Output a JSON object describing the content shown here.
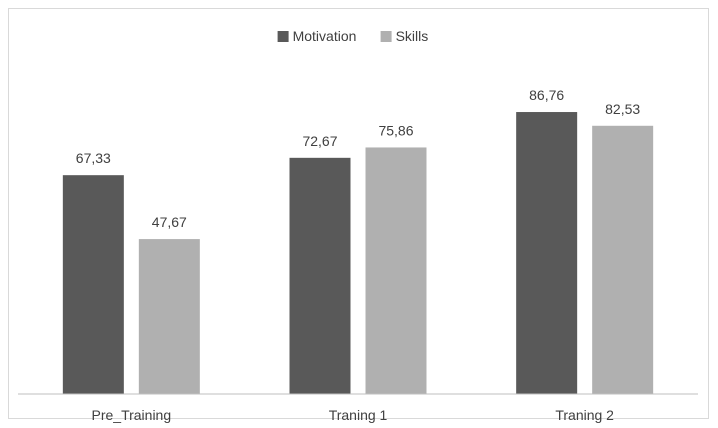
{
  "chart_data": {
    "type": "bar",
    "categories": [
      "Pre_Training",
      "Traning 1",
      "Traning 2"
    ],
    "series": [
      {
        "name": "Motivation",
        "values": [
          67.33,
          72.67,
          86.76
        ],
        "labels": [
          "67,33",
          "72,67",
          "86,76"
        ],
        "color": "#595959"
      },
      {
        "name": "Skills",
        "values": [
          47.67,
          75.86,
          82.53
        ],
        "labels": [
          "47,67",
          "75,86",
          "82,53"
        ],
        "color": "#b0b0b0"
      }
    ],
    "ylim": [
      0,
      100
    ],
    "grid": false,
    "legend_position": "top-center",
    "y_axis_visible": false
  }
}
